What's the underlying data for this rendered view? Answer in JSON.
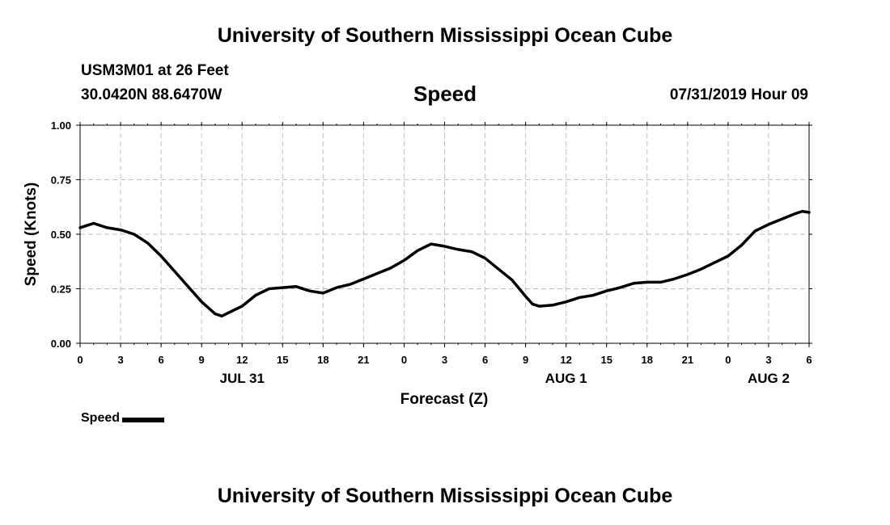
{
  "header": {
    "title_top": "University of Southern Mississippi Ocean Cube",
    "station": "USM3M01 at 26 Feet",
    "coords": "30.0420N 88.6470W",
    "variable": "Speed",
    "timestamp": "07/31/2019 Hour 09"
  },
  "footer": {
    "title_bottom": "University of Southern Mississippi Ocean Cube"
  },
  "legend": {
    "label": "Speed"
  },
  "chart_data": {
    "type": "line",
    "title": "Speed",
    "xlabel": "Forecast (Z)",
    "ylabel": "Speed (Knots)",
    "xlim": [
      0,
      54
    ],
    "ylim": [
      0,
      1
    ],
    "grid": true,
    "x_ticks": [
      0,
      3,
      6,
      9,
      12,
      15,
      18,
      21,
      24,
      27,
      30,
      33,
      36,
      39,
      42,
      45,
      48,
      51,
      54
    ],
    "x_tick_labels": [
      "0",
      "3",
      "6",
      "9",
      "12",
      "15",
      "18",
      "21",
      "0",
      "3",
      "6",
      "9",
      "12",
      "15",
      "18",
      "21",
      "0",
      "3",
      "6"
    ],
    "y_ticks": [
      0,
      0.25,
      0.5,
      0.75,
      1.0
    ],
    "y_tick_labels": [
      "0.00",
      "0.25",
      "0.50",
      "0.75",
      "1.00"
    ],
    "day_labels": [
      {
        "x": 12,
        "label": "JUL 31"
      },
      {
        "x": 36,
        "label": "AUG 1"
      },
      {
        "x": 51,
        "label": "AUG 2"
      }
    ],
    "series": [
      {
        "name": "Speed",
        "color": "#000000",
        "x": [
          0,
          1,
          2,
          3,
          4,
          5,
          6,
          7,
          8,
          9,
          10,
          10.5,
          11,
          12,
          13,
          14,
          15,
          16,
          17,
          18,
          19,
          20,
          21,
          22,
          23,
          24,
          25,
          26,
          27,
          28,
          29,
          30,
          31,
          32,
          33,
          33.5,
          34,
          35,
          36,
          37,
          38,
          39,
          40,
          41,
          42,
          43,
          44,
          45,
          46,
          47,
          48,
          49,
          50,
          51,
          52,
          53,
          53.5,
          54
        ],
        "values": [
          0.53,
          0.55,
          0.53,
          0.52,
          0.5,
          0.46,
          0.4,
          0.33,
          0.26,
          0.19,
          0.135,
          0.125,
          0.14,
          0.17,
          0.22,
          0.25,
          0.255,
          0.26,
          0.24,
          0.23,
          0.255,
          0.27,
          0.295,
          0.32,
          0.345,
          0.38,
          0.425,
          0.455,
          0.445,
          0.43,
          0.42,
          0.39,
          0.34,
          0.29,
          0.215,
          0.18,
          0.17,
          0.175,
          0.19,
          0.21,
          0.22,
          0.24,
          0.255,
          0.275,
          0.28,
          0.28,
          0.295,
          0.315,
          0.34,
          0.37,
          0.4,
          0.45,
          0.515,
          0.545,
          0.57,
          0.595,
          0.605,
          0.6
        ]
      }
    ]
  }
}
